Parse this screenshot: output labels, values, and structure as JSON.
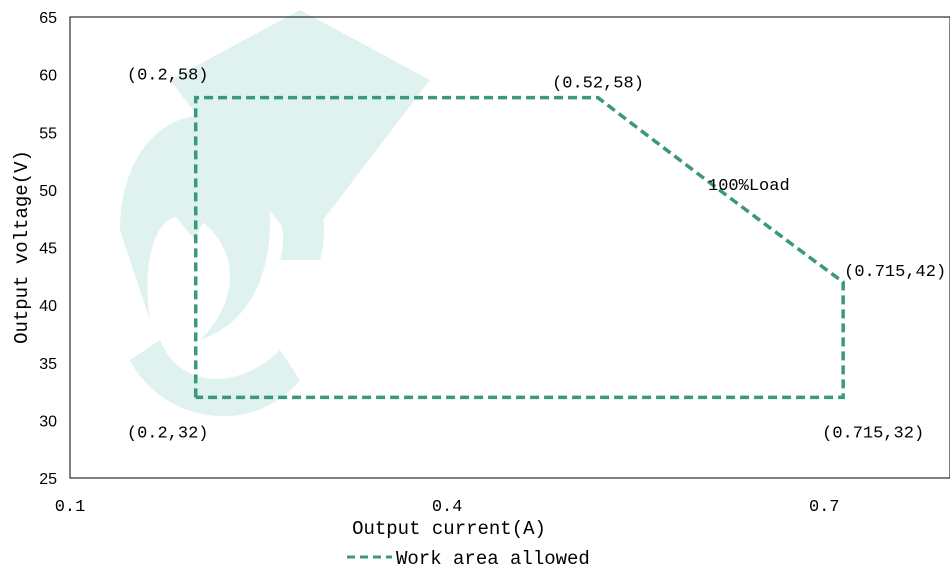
{
  "chart_data": {
    "type": "line",
    "xlabel": "Output current(A)",
    "ylabel": "Output voltage(V)",
    "xlim": [
      0.1,
      0.8
    ],
    "ylim": [
      25,
      65
    ],
    "x_ticks": [
      0.1,
      0.4,
      0.7
    ],
    "x_tick_labels": [
      "0.1",
      "0.4",
      "0.7"
    ],
    "y_ticks": [
      25,
      30,
      35,
      40,
      45,
      50,
      55,
      60,
      65
    ],
    "y_tick_labels": [
      "25",
      "30",
      "35",
      "40",
      "45",
      "50",
      "55",
      "60",
      "65"
    ],
    "grid": false,
    "legend_position": "bottom",
    "series": [
      {
        "name": "Work area allowed",
        "color": "#3a9a78",
        "style": "dashed",
        "points": [
          {
            "x": 0.2,
            "y": 32
          },
          {
            "x": 0.2,
            "y": 58
          },
          {
            "x": 0.52,
            "y": 58
          },
          {
            "x": 0.6,
            "y": 51.3
          },
          {
            "x": 0.68,
            "y": 44.8
          },
          {
            "x": 0.715,
            "y": 42
          },
          {
            "x": 0.715,
            "y": 32
          },
          {
            "x": 0.2,
            "y": 32
          }
        ]
      }
    ],
    "annotations": [
      {
        "text": "(0.2,58)",
        "x": 0.2,
        "y": 58
      },
      {
        "text": "(0.52,58)",
        "x": 0.52,
        "y": 58
      },
      {
        "text": "100%Load",
        "x": 0.64,
        "y": 50
      },
      {
        "text": "(0.715,42)",
        "x": 0.715,
        "y": 42
      },
      {
        "text": "(0.2,32)",
        "x": 0.2,
        "y": 32
      },
      {
        "text": "(0.715,32)",
        "x": 0.715,
        "y": 32
      }
    ],
    "watermark_color": "#dff2ef"
  }
}
